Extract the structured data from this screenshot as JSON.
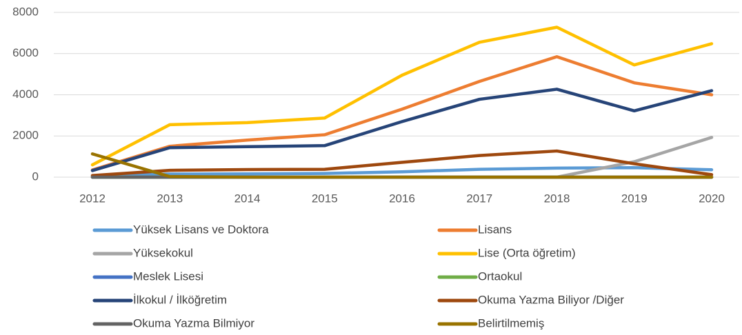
{
  "chart_data": {
    "type": "line",
    "categories": [
      "2012",
      "2013",
      "2014",
      "2015",
      "2016",
      "2017",
      "2018",
      "2019",
      "2020"
    ],
    "ylim": [
      0,
      8000
    ],
    "yticks": [
      0,
      2000,
      4000,
      6000,
      8000
    ],
    "grid": true,
    "series": [
      {
        "name": "Yüksek Lisans ve Doktora",
        "color": "#5b9bd5",
        "values": [
          50,
          150,
          160,
          180,
          260,
          380,
          440,
          460,
          360
        ]
      },
      {
        "name": "Lisans",
        "color": "#ed7d31",
        "values": [
          350,
          1500,
          1800,
          2060,
          3300,
          4650,
          5850,
          4580,
          4000
        ]
      },
      {
        "name": "Yüksekokul",
        "color": "#a5a5a5",
        "values": [
          0,
          0,
          0,
          0,
          0,
          0,
          0,
          750,
          1930
        ]
      },
      {
        "name": "Lise (Orta öğretim)",
        "color": "#ffc000",
        "values": [
          600,
          2550,
          2650,
          2870,
          4950,
          6550,
          7280,
          5450,
          6480
        ]
      },
      {
        "name": "Meslek Lisesi",
        "color": "#4472c4",
        "values": [
          0,
          0,
          0,
          0,
          0,
          0,
          0,
          0,
          0
        ]
      },
      {
        "name": "Ortaokul",
        "color": "#70ad47",
        "values": [
          0,
          0,
          0,
          0,
          0,
          0,
          0,
          0,
          0
        ]
      },
      {
        "name": "İlkokul / İlköğretim",
        "color": "#264478",
        "values": [
          320,
          1430,
          1480,
          1530,
          2700,
          3780,
          4270,
          3220,
          4200
        ]
      },
      {
        "name": "Okuma Yazma Biliyor /Diğer",
        "color": "#9e480e",
        "values": [
          80,
          330,
          370,
          380,
          720,
          1050,
          1270,
          650,
          120
        ]
      },
      {
        "name": "Okuma Yazma Bilmiyor",
        "color": "#636363",
        "values": [
          0,
          0,
          0,
          0,
          0,
          0,
          0,
          0,
          0
        ]
      },
      {
        "name": "Belirtilmemiş",
        "color": "#997300",
        "values": [
          1130,
          30,
          0,
          0,
          0,
          0,
          0,
          0,
          0
        ]
      }
    ]
  }
}
